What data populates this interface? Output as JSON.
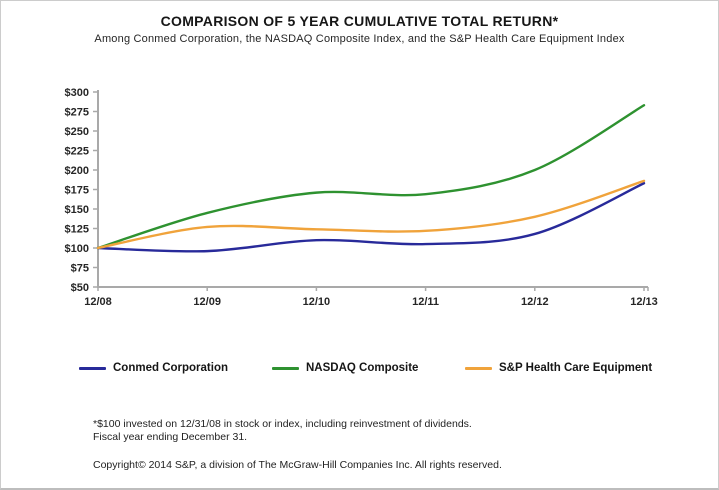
{
  "title": "COMPARISON OF 5 YEAR CUMULATIVE TOTAL RETURN*",
  "subtitle": "Among Conmed Corporation, the NASDAQ Composite Index, and the S&P Health Care Equipment Index",
  "chart_data": {
    "type": "line",
    "categories": [
      "12/08",
      "12/09",
      "12/10",
      "12/11",
      "12/12",
      "12/13"
    ],
    "series": [
      {
        "name": "Conmed Corporation",
        "color": "#282a9a",
        "values": [
          100,
          96,
          110,
          105,
          118,
          183
        ]
      },
      {
        "name": "NASDAQ Composite",
        "color": "#2e9230",
        "values": [
          100,
          145,
          171,
          169,
          200,
          283
        ]
      },
      {
        "name": "S&P Health Care Equipment",
        "color": "#f0a33b",
        "values": [
          100,
          127,
          124,
          122,
          140,
          186
        ]
      }
    ],
    "ylim": [
      50,
      300
    ],
    "y_tick_step": 25,
    "y_tick_labels": [
      "$50",
      "$75",
      "$100",
      "$125",
      "$150",
      "$175",
      "$200",
      "$225",
      "$250",
      "$275",
      "$300"
    ],
    "xlabel": "",
    "ylabel": "",
    "grid": false,
    "legend_position": "bottom",
    "axis_color": "#a9a9a9"
  },
  "footnotes": {
    "line1": "*$100 invested on 12/31/08 in stock or index, including reinvestment of dividends.",
    "line2": "Fiscal year ending December 31.",
    "copyright": "Copyright© 2014 S&P, a division of The McGraw-Hill Companies Inc. All rights reserved."
  }
}
